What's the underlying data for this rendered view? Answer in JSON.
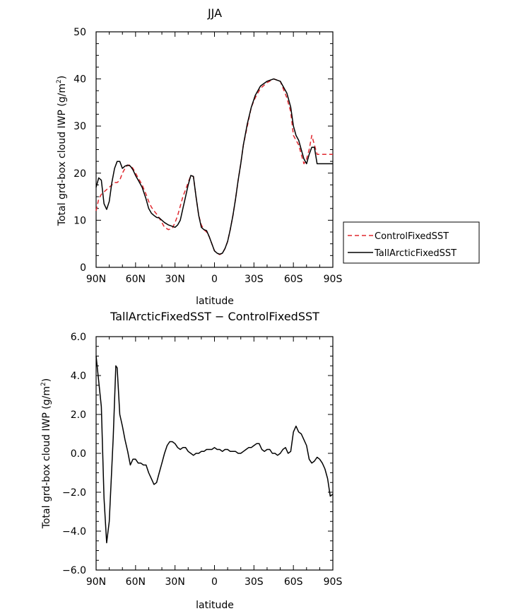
{
  "chart_data": [
    {
      "type": "line",
      "title": "JJA",
      "xlabel": "latitude",
      "ylabel": "Total grd-box cloud IWP (g/m²)",
      "ylabel_main": "Total grd-box cloud IWP (g/m",
      "ylabel_sup": "2",
      "ylabel_end": ")",
      "xlim": [
        90,
        -90
      ],
      "ylim": [
        0,
        50
      ],
      "x_ticks": [
        90,
        60,
        30,
        0,
        -30,
        -60,
        -90
      ],
      "x_tick_labels": [
        "90N",
        "60N",
        "30N",
        "0",
        "30S",
        "60S",
        "90S"
      ],
      "y_ticks": [
        0,
        10,
        20,
        30,
        40,
        50
      ],
      "y_tick_labels": [
        "0",
        "10",
        "20",
        "30",
        "40",
        "50"
      ],
      "grid": false,
      "legend_placement": "right",
      "series": [
        {
          "name": "ControlFixedSST",
          "color": "#e0282f",
          "dash": "dashed",
          "x": [
            90,
            88,
            86,
            84,
            82,
            80,
            78,
            76,
            74,
            72,
            70,
            68,
            66,
            64,
            62,
            60,
            58,
            55,
            52,
            50,
            48,
            46,
            44,
            42,
            40,
            38,
            35,
            32,
            30,
            28,
            26,
            24,
            22,
            20,
            18,
            16,
            14,
            12,
            10,
            8,
            6,
            4,
            2,
            0,
            -2,
            -4,
            -6,
            -8,
            -10,
            -12,
            -14,
            -16,
            -18,
            -20,
            -22,
            -25,
            -28,
            -31,
            -35,
            -40,
            -45,
            -50,
            -55,
            -58,
            -60,
            -62,
            -64,
            -66,
            -68,
            -70,
            -72,
            -74,
            -76,
            -78,
            -80,
            -82,
            -84,
            -86,
            -88,
            -90
          ],
          "y": [
            12,
            14.5,
            15.5,
            16,
            16.5,
            17,
            17.5,
            18,
            18,
            18.5,
            20,
            21,
            21.7,
            21.7,
            21,
            20,
            19,
            17.5,
            15.5,
            14,
            12.8,
            12,
            11.3,
            10.5,
            9.5,
            8.5,
            8,
            8.3,
            9.5,
            11,
            13,
            15,
            16.5,
            18,
            19.5,
            19.3,
            15,
            11,
            9,
            8,
            7.5,
            6.5,
            5,
            3.5,
            3,
            2.7,
            3,
            4,
            5.5,
            8,
            11,
            14.5,
            18.5,
            22,
            26,
            30,
            34,
            36,
            38,
            39.2,
            40,
            39.5,
            36,
            33,
            28,
            27,
            26,
            24,
            22,
            23,
            25,
            28,
            26,
            24,
            24,
            24,
            24,
            24,
            24,
            24
          ]
        },
        {
          "name": "TallArcticFixedSST",
          "color": "#000000",
          "dash": "solid",
          "x": [
            90,
            88,
            86,
            84,
            82,
            80,
            78,
            76,
            74,
            72,
            70,
            68,
            66,
            64,
            62,
            60,
            58,
            55,
            52,
            50,
            48,
            46,
            44,
            42,
            40,
            38,
            35,
            32,
            30,
            28,
            26,
            24,
            22,
            20,
            18,
            16,
            14,
            12,
            10,
            8,
            6,
            4,
            2,
            0,
            -2,
            -4,
            -6,
            -8,
            -10,
            -12,
            -14,
            -16,
            -18,
            -20,
            -22,
            -25,
            -28,
            -31,
            -35,
            -40,
            -45,
            -50,
            -55,
            -58,
            -60,
            -62,
            -64,
            -66,
            -68,
            -70,
            -72,
            -74,
            -76,
            -78,
            -80,
            -82,
            -84,
            -86,
            -88,
            -90
          ],
          "y": [
            17,
            19,
            18.5,
            13.5,
            12.3,
            14,
            18,
            21,
            22.5,
            22.5,
            21,
            21.5,
            21.7,
            21.5,
            20.7,
            19.5,
            18.5,
            17,
            14.5,
            12.5,
            11.5,
            11,
            10.6,
            10.5,
            10,
            9.5,
            9,
            8.7,
            8.5,
            9,
            10,
            12.5,
            15,
            17.5,
            19.5,
            19.3,
            15,
            11,
            8.5,
            8,
            7.8,
            6.5,
            5,
            3.5,
            3,
            2.8,
            3,
            4,
            5.5,
            8,
            11,
            14.5,
            18.5,
            22,
            26,
            30.5,
            34,
            36.5,
            38.5,
            39.5,
            40,
            39.5,
            37,
            34,
            30,
            28,
            27,
            25,
            23,
            22,
            24,
            25.5,
            25.5,
            22,
            22,
            22,
            22,
            22,
            22,
            22
          ]
        }
      ]
    },
    {
      "type": "line",
      "title": "TallArcticFixedSST − ControlFixedSST",
      "xlabel": "latitude",
      "ylabel": "Total grd-box cloud IWP (g/m²)",
      "ylabel_main": "Total grd-box cloud IWP (g/m",
      "ylabel_sup": "2",
      "ylabel_end": ")",
      "xlim": [
        90,
        -90
      ],
      "ylim": [
        -6,
        6
      ],
      "x_ticks": [
        90,
        60,
        30,
        0,
        -30,
        -60,
        -90
      ],
      "x_tick_labels": [
        "90N",
        "60N",
        "30N",
        "0",
        "30S",
        "60S",
        "90S"
      ],
      "y_ticks": [
        -6,
        -4,
        -2,
        0,
        2,
        4,
        6
      ],
      "y_tick_labels": [
        "−6.0",
        "−4.0",
        "−2.0",
        "0.0",
        "2.0",
        "4.0",
        "6.0"
      ],
      "grid": false,
      "series": [
        {
          "name": "",
          "color": "#000000",
          "dash": "solid",
          "x": [
            90,
            86,
            84,
            82,
            80,
            77,
            75,
            74,
            72,
            70,
            68,
            66,
            64,
            62,
            60,
            58,
            56,
            54,
            52,
            50,
            48,
            46,
            44,
            42,
            40,
            38,
            36,
            34,
            32,
            30,
            28,
            26,
            24,
            22,
            20,
            18,
            16,
            14,
            12,
            10,
            8,
            6,
            4,
            2,
            0,
            -2,
            -4,
            -6,
            -8,
            -10,
            -12,
            -14,
            -16,
            -18,
            -20,
            -22,
            -24,
            -26,
            -28,
            -30,
            -32,
            -34,
            -36,
            -38,
            -40,
            -42,
            -44,
            -46,
            -48,
            -50,
            -52,
            -54,
            -56,
            -58,
            -60,
            -62,
            -64,
            -66,
            -68,
            -70,
            -72,
            -74,
            -76,
            -78,
            -80,
            -82,
            -84,
            -86,
            -88,
            -90
          ],
          "y": [
            5,
            2.4,
            -2.3,
            -4.6,
            -3.5,
            0.8,
            4.5,
            4.4,
            2,
            1.4,
            0.7,
            0.1,
            -0.6,
            -0.3,
            -0.3,
            -0.5,
            -0.5,
            -0.6,
            -0.6,
            -1,
            -1.3,
            -1.6,
            -1.5,
            -1,
            -0.5,
            0,
            0.4,
            0.6,
            0.6,
            0.5,
            0.3,
            0.2,
            0.3,
            0.3,
            0.1,
            0,
            -0.1,
            0,
            0,
            0.1,
            0.1,
            0.2,
            0.2,
            0.2,
            0.3,
            0.2,
            0.2,
            0.1,
            0.2,
            0.2,
            0.1,
            0.1,
            0.1,
            0,
            0,
            0.1,
            0.2,
            0.3,
            0.3,
            0.4,
            0.5,
            0.5,
            0.2,
            0.1,
            0.2,
            0.2,
            0,
            0,
            -0.1,
            0,
            0.2,
            0.3,
            0,
            0.1,
            1.1,
            1.4,
            1.1,
            1,
            0.7,
            0.4,
            -0.3,
            -0.5,
            -0.4,
            -0.2,
            -0.3,
            -0.5,
            -0.8,
            -1.3,
            -2.2,
            -2.1
          ]
        }
      ]
    }
  ]
}
